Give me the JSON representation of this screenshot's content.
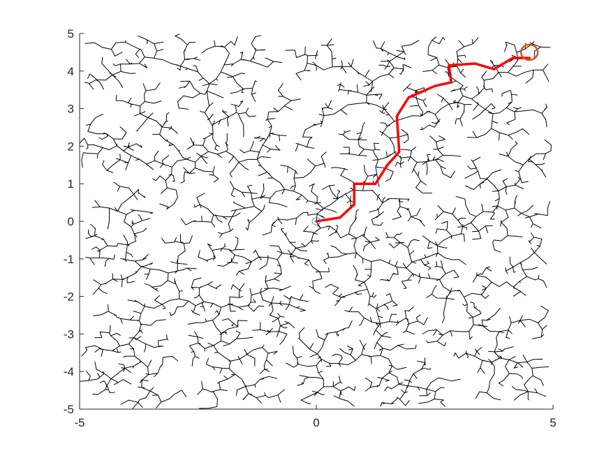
{
  "chart_data": {
    "type": "line",
    "title": "",
    "xlabel": "",
    "ylabel": "",
    "xlim": [
      -5,
      5
    ],
    "ylim": [
      -5,
      5
    ],
    "x_ticks": [
      -5,
      0,
      5
    ],
    "y_ticks": [
      -5,
      -4,
      -3,
      -2,
      -1,
      0,
      1,
      2,
      3,
      4,
      5
    ],
    "grid": false,
    "legend": "none",
    "series": [
      {
        "role": "tree",
        "style": "black thin line segments",
        "color": "#000000",
        "random_seed": 7,
        "node_count": 2600,
        "step_length": 0.2
      },
      {
        "role": "path",
        "style": "thick red polyline",
        "color": "#ff0000",
        "points": [
          [
            0.0,
            0.0
          ],
          [
            0.5,
            0.1
          ],
          [
            0.8,
            0.45
          ],
          [
            0.8,
            1.0
          ],
          [
            1.25,
            1.0
          ],
          [
            1.5,
            1.5
          ],
          [
            1.75,
            1.85
          ],
          [
            1.7,
            2.8
          ],
          [
            1.95,
            3.3
          ],
          [
            2.5,
            3.6
          ],
          [
            2.85,
            3.7
          ],
          [
            2.8,
            4.15
          ],
          [
            3.35,
            4.2
          ],
          [
            3.75,
            4.05
          ],
          [
            4.15,
            4.35
          ],
          [
            4.5,
            4.35
          ]
        ]
      },
      {
        "role": "start",
        "style": "small blue circle",
        "color": "#4a90c2",
        "point": [
          0.0,
          0.0
        ]
      },
      {
        "role": "goal",
        "style": "orange circle",
        "color": "#d95319",
        "point": [
          4.5,
          4.5
        ]
      }
    ]
  }
}
